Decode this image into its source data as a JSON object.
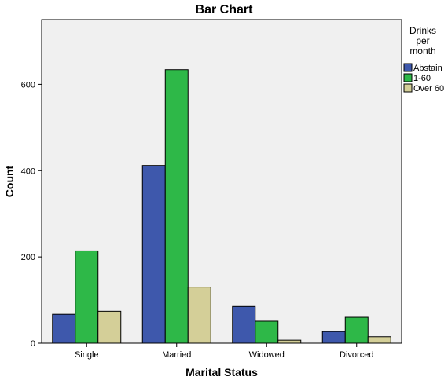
{
  "chart_data": {
    "type": "bar",
    "title": "Bar Chart",
    "xlabel": "Marital Status",
    "ylabel": "Count",
    "categories": [
      "Single",
      "Married",
      "Widowed",
      "Divorced"
    ],
    "ylim": [
      0,
      750
    ],
    "yticks": [
      0,
      200,
      400,
      600
    ],
    "ytick_labels": [
      "0",
      "200",
      "400",
      "600"
    ],
    "grid": false,
    "legend": {
      "title_lines": [
        "Drinks",
        "per",
        "month"
      ],
      "position": "right"
    },
    "series": [
      {
        "name": "Abstain",
        "color": "#3e58ac",
        "values": [
          67,
          412,
          85,
          27
        ]
      },
      {
        "name": "1-60",
        "color": "#2eb848",
        "values": [
          214,
          634,
          51,
          60
        ]
      },
      {
        "name": "Over 60",
        "color": "#d4cf98",
        "values": [
          74,
          130,
          7,
          15
        ]
      }
    ],
    "plot_background": "#f0f0f0"
  }
}
